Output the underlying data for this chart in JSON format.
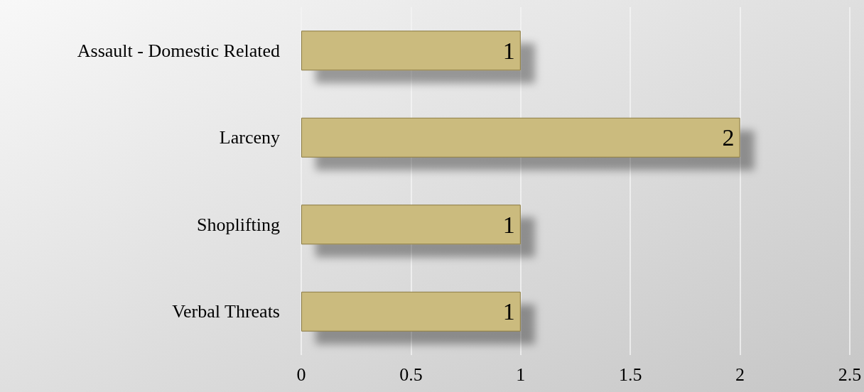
{
  "chart_data": {
    "type": "bar",
    "orientation": "horizontal",
    "categories": [
      "Assault - Domestic Related",
      "Larceny",
      "Shoplifting",
      "Verbal Threats"
    ],
    "values": [
      1,
      2,
      1,
      1
    ],
    "color": "#cbbb7e",
    "xlim": [
      0,
      2.5
    ],
    "xticks": [
      0,
      0.5,
      1,
      1.5,
      2,
      2.5
    ],
    "grid": "x",
    "data_labels": true
  }
}
